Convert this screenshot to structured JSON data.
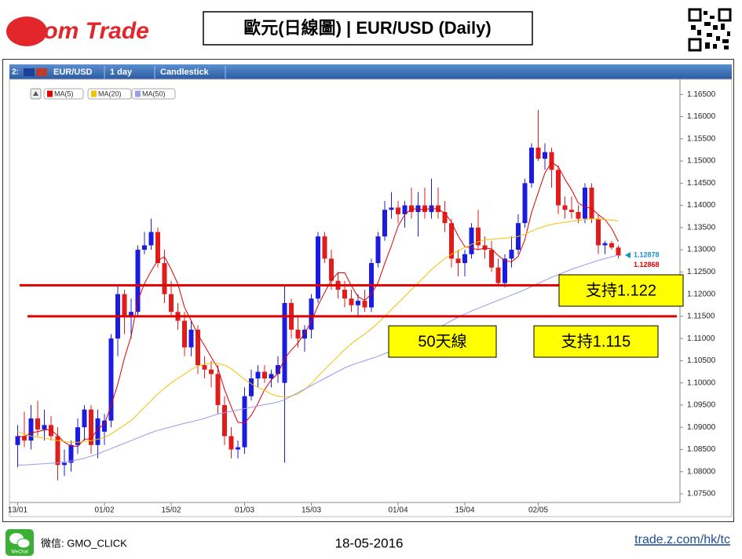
{
  "header": {
    "logo": "Z.com Trade",
    "title": "歐元(日線圖) | EUR/USD (Daily)"
  },
  "toolbar": {
    "panel": "2:",
    "symbol": "EUR/USD",
    "interval": "1 day",
    "style": "Candlestick"
  },
  "chart_data": {
    "type": "candlestick",
    "categories": [
      "13/01",
      null,
      null,
      null,
      null,
      null,
      null,
      null,
      null,
      null,
      null,
      null,
      null,
      "01/02",
      null,
      null,
      null,
      null,
      null,
      null,
      null,
      null,
      null,
      "15/02",
      null,
      null,
      null,
      null,
      null,
      null,
      null,
      null,
      null,
      null,
      "01/03",
      null,
      null,
      null,
      null,
      null,
      null,
      null,
      null,
      null,
      "15/03",
      null,
      null,
      null,
      null,
      null,
      null,
      null,
      null,
      null,
      null,
      null,
      null,
      "01/04",
      null,
      null,
      null,
      null,
      null,
      null,
      null,
      null,
      null,
      "15/04",
      null,
      null,
      null,
      null,
      null,
      null,
      null,
      null,
      null,
      null,
      "02/05",
      null,
      null,
      null,
      null,
      null,
      null,
      null,
      null,
      null,
      null,
      null,
      null
    ],
    "open": [
      1.086,
      1.088,
      1.087,
      1.092,
      1.0895,
      1.0905,
      1.088,
      1.0815,
      1.082,
      1.086,
      1.09,
      1.094,
      1.086,
      1.089,
      1.0915,
      1.11,
      1.12,
      1.115,
      1.116,
      1.13,
      1.131,
      1.134,
      1.127,
      1.12,
      1.116,
      1.114,
      1.108,
      1.112,
      1.104,
      1.103,
      1.102,
      1.095,
      1.088,
      1.085,
      1.0855,
      1.097,
      1.101,
      1.1025,
      1.101,
      1.102,
      1.1,
      1.118,
      1.112,
      1.11,
      1.112,
      1.119,
      1.133,
      1.128,
      1.123,
      1.121,
      1.119,
      1.1175,
      1.1185,
      1.117,
      1.127,
      1.133,
      1.139,
      1.1395,
      1.138,
      1.14,
      1.1385,
      1.14,
      1.1385,
      1.14,
      1.1385,
      1.136,
      1.128,
      1.127,
      1.129,
      1.135,
      1.131,
      1.13,
      1.126,
      1.1225,
      1.128,
      1.13,
      1.136,
      1.145,
      1.153,
      1.1505,
      1.152,
      1.148,
      1.14,
      1.139,
      1.1385,
      1.137,
      1.144,
      1.137,
      1.131,
      1.1315,
      1.1305
    ],
    "high": [
      1.0905,
      1.0935,
      1.095,
      1.096,
      1.094,
      1.0925,
      1.09,
      1.085,
      1.087,
      1.092,
      1.095,
      1.095,
      1.094,
      1.093,
      1.111,
      1.122,
      1.121,
      1.119,
      1.131,
      1.134,
      1.137,
      1.135,
      1.13,
      1.123,
      1.118,
      1.116,
      1.114,
      1.113,
      1.106,
      1.105,
      1.104,
      1.097,
      1.09,
      1.087,
      1.099,
      1.103,
      1.104,
      1.104,
      1.103,
      1.106,
      1.122,
      1.119,
      1.115,
      1.113,
      1.12,
      1.134,
      1.134,
      1.13,
      1.125,
      1.123,
      1.121,
      1.12,
      1.121,
      1.128,
      1.134,
      1.141,
      1.143,
      1.141,
      1.141,
      1.144,
      1.143,
      1.144,
      1.146,
      1.144,
      1.141,
      1.137,
      1.13,
      1.13,
      1.136,
      1.139,
      1.133,
      1.132,
      1.128,
      1.129,
      1.133,
      1.138,
      1.146,
      1.154,
      1.1615,
      1.154,
      1.153,
      1.149,
      1.142,
      1.142,
      1.14,
      1.145,
      1.145,
      1.138,
      1.132,
      1.132,
      1.131
    ],
    "low": [
      1.081,
      1.0855,
      1.085,
      1.088,
      1.087,
      1.087,
      1.078,
      1.079,
      1.08,
      1.084,
      1.087,
      1.084,
      1.083,
      1.086,
      1.09,
      1.106,
      1.111,
      1.11,
      1.115,
      1.129,
      1.13,
      1.126,
      1.118,
      1.115,
      1.112,
      1.106,
      1.106,
      1.102,
      1.101,
      1.099,
      1.093,
      1.086,
      1.083,
      1.083,
      1.084,
      1.096,
      1.099,
      1.1,
      1.099,
      1.1,
      1.082,
      1.11,
      1.108,
      1.107,
      1.11,
      1.118,
      1.127,
      1.121,
      1.119,
      1.117,
      1.116,
      1.115,
      1.116,
      1.116,
      1.126,
      1.132,
      1.137,
      1.136,
      1.135,
      1.137,
      1.133,
      1.137,
      1.137,
      1.137,
      1.134,
      1.126,
      1.124,
      1.124,
      1.128,
      1.13,
      1.128,
      1.125,
      1.122,
      1.1215,
      1.126,
      1.129,
      1.135,
      1.144,
      1.15,
      1.148,
      1.144,
      1.138,
      1.137,
      1.137,
      1.136,
      1.136,
      1.136,
      1.129,
      1.129,
      1.13,
      1.128
    ],
    "close": [
      1.088,
      1.087,
      1.092,
      1.0895,
      1.0905,
      1.088,
      1.0815,
      1.082,
      1.086,
      1.09,
      1.094,
      1.086,
      1.092,
      1.0915,
      1.11,
      1.12,
      1.115,
      1.116,
      1.13,
      1.131,
      1.134,
      1.127,
      1.12,
      1.116,
      1.114,
      1.108,
      1.112,
      1.104,
      1.103,
      1.102,
      1.095,
      1.088,
      1.085,
      1.0855,
      1.097,
      1.101,
      1.1025,
      1.101,
      1.102,
      1.104,
      1.118,
      1.112,
      1.11,
      1.112,
      1.119,
      1.133,
      1.128,
      1.123,
      1.121,
      1.119,
      1.1175,
      1.1185,
      1.117,
      1.127,
      1.133,
      1.139,
      1.1395,
      1.138,
      1.14,
      1.1385,
      1.14,
      1.1385,
      1.14,
      1.1385,
      1.136,
      1.128,
      1.127,
      1.129,
      1.135,
      1.131,
      1.13,
      1.126,
      1.1225,
      1.128,
      1.13,
      1.136,
      1.145,
      1.153,
      1.1505,
      1.152,
      1.148,
      1.14,
      1.139,
      1.1385,
      1.137,
      1.144,
      1.137,
      1.131,
      1.1315,
      1.1305,
      1.1287
    ],
    "up_color": "#1c1ce0",
    "down_color": "#e01c1c",
    "series": [
      {
        "name": "MA(5)",
        "color": "#e00000",
        "values": [
          1.088,
          1.0878,
          1.0888,
          1.089,
          1.0894,
          1.0894,
          1.0881,
          1.0866,
          1.0858,
          1.0857,
          1.0873,
          1.0874,
          1.0896,
          1.0907,
          1.0949,
          1.0997,
          1.1056,
          1.1105,
          1.1185,
          1.1224,
          1.1252,
          1.1276,
          1.1284,
          1.1256,
          1.1223,
          1.117,
          1.114,
          1.1109,
          1.1084,
          1.1058,
          1.1033,
          1.0985,
          1.0946,
          1.0911,
          1.091,
          1.0927,
          1.0954,
          1.0985,
          1.1007,
          1.1021,
          1.1055,
          1.1074,
          1.109,
          1.1112,
          1.1138,
          1.1174,
          1.1204,
          1.1231,
          1.1248,
          1.1248,
          1.1219,
          1.1194,
          1.1186,
          1.12,
          1.1226,
          1.1269,
          1.1309,
          1.1353,
          1.1379,
          1.1392,
          1.1392,
          1.139,
          1.1394,
          1.1391,
          1.1383,
          1.1362,
          1.1331,
          1.1307,
          1.1304,
          1.13,
          1.1304,
          1.1302,
          1.1287,
          1.1275,
          1.1273,
          1.1285,
          1.1323,
          1.1384,
          1.1429,
          1.1473,
          1.1497,
          1.1487,
          1.1459,
          1.1435,
          1.1405,
          1.1397,
          1.1393,
          1.1379,
          1.1368,
          1.1348,
          1.1318
        ]
      },
      {
        "name": "MA(20)",
        "color": "#f2c200",
        "values": [
          1.089,
          1.0885,
          1.088,
          1.0878,
          1.0875,
          1.0873,
          1.087,
          1.0868,
          1.0866,
          1.0866,
          1.0868,
          1.087,
          1.0873,
          1.0877,
          1.0885,
          1.0895,
          1.0905,
          1.0915,
          1.093,
          1.0945,
          1.096,
          1.0975,
          1.0988,
          1.1,
          1.101,
          1.102,
          1.103,
          1.1038,
          1.1042,
          1.1045,
          1.1044,
          1.104,
          1.1032,
          1.102,
          1.1008,
          1.0998,
          1.099,
          1.0983,
          1.0975,
          1.097,
          1.0968,
          1.097,
          1.0975,
          1.0985,
          1.0998,
          1.1015,
          1.103,
          1.1045,
          1.106,
          1.1075,
          1.1088,
          1.11,
          1.111,
          1.1122,
          1.1135,
          1.115,
          1.1165,
          1.118,
          1.1195,
          1.121,
          1.1225,
          1.124,
          1.1255,
          1.1268,
          1.128,
          1.129,
          1.1298,
          1.1305,
          1.1312,
          1.1318,
          1.1322,
          1.1324,
          1.1325,
          1.1326,
          1.1327,
          1.133,
          1.1335,
          1.1342,
          1.1348,
          1.1353,
          1.1357,
          1.136,
          1.1362,
          1.1364,
          1.1366,
          1.1368,
          1.137,
          1.1369,
          1.1368,
          1.1367,
          1.1365
        ]
      },
      {
        "name": "MA(50)",
        "color": "#9a9aee",
        "values": [
          1.0815,
          1.0815,
          1.0816,
          1.0817,
          1.0818,
          1.0819,
          1.082,
          1.0822,
          1.0824,
          1.0827,
          1.083,
          1.0835,
          1.084,
          1.0846,
          1.0852,
          1.0858,
          1.0864,
          1.087,
          1.0876,
          1.0882,
          1.0888,
          1.0893,
          1.0897,
          1.0901,
          1.0905,
          1.0909,
          1.0912,
          1.0916,
          1.092,
          1.0925,
          1.093,
          1.0933,
          1.0936,
          1.0939,
          1.0942,
          1.0945,
          1.0948,
          1.0951,
          1.0954,
          1.0957,
          1.0962,
          1.097,
          1.0978,
          1.0986,
          1.0994,
          1.1002,
          1.101,
          1.1018,
          1.1026,
          1.1034,
          1.104,
          1.1045,
          1.105,
          1.1055,
          1.106,
          1.1066,
          1.1072,
          1.1079,
          1.1086,
          1.1093,
          1.11,
          1.1108,
          1.1116,
          1.1124,
          1.1132,
          1.114,
          1.1148,
          1.1155,
          1.1162,
          1.1168,
          1.1174,
          1.118,
          1.1186,
          1.1192,
          1.1198,
          1.1204,
          1.121,
          1.1217,
          1.1224,
          1.1231,
          1.1238,
          1.1244,
          1.125,
          1.1256,
          1.1261,
          1.1266,
          1.1271,
          1.1276,
          1.128,
          1.1284,
          1.1288
        ]
      }
    ],
    "ylim": [
      1.0727,
      1.1677
    ],
    "yticks": [
      {
        "value": 1.075,
        "label": "1.07500"
      },
      {
        "value": 1.08,
        "label": "1.08000"
      },
      {
        "value": 1.085,
        "label": "1.08500"
      },
      {
        "value": 1.09,
        "label": "1.09000"
      },
      {
        "value": 1.095,
        "label": "1.09500"
      },
      {
        "value": 1.1,
        "label": "1.10000"
      },
      {
        "value": 1.105,
        "label": "1.10500"
      },
      {
        "value": 1.11,
        "label": "1.11000"
      },
      {
        "value": 1.115,
        "label": "1.11500"
      },
      {
        "value": 1.12,
        "label": "1.12000"
      },
      {
        "value": 1.125,
        "label": "1.12500"
      },
      {
        "value": 1.13,
        "label": "1.13000"
      },
      {
        "value": 1.135,
        "label": "1.13500"
      },
      {
        "value": 1.14,
        "label": "1.14000"
      },
      {
        "value": 1.145,
        "label": "1.14500"
      },
      {
        "value": 1.15,
        "label": "1.15000"
      },
      {
        "value": 1.155,
        "label": "1.15500"
      },
      {
        "value": 1.16,
        "label": "1.16000"
      },
      {
        "value": 1.165,
        "label": "1.16500"
      }
    ],
    "price_labels": [
      {
        "value": 1.12878,
        "color": "#1a8fd0"
      },
      {
        "value": 1.12868,
        "color": "#e00000"
      }
    ],
    "support_lines": [
      1.122,
      1.115
    ],
    "support_color": "#e00000",
    "annotations": [
      "支持1.122",
      "50天線",
      "支持1.115"
    ]
  },
  "footer": {
    "wechat_label": "WeChat",
    "wechat_id": "微信: GMO_CLICK",
    "date": "18-05-2016",
    "url": "trade.z.com/hk/tc"
  }
}
